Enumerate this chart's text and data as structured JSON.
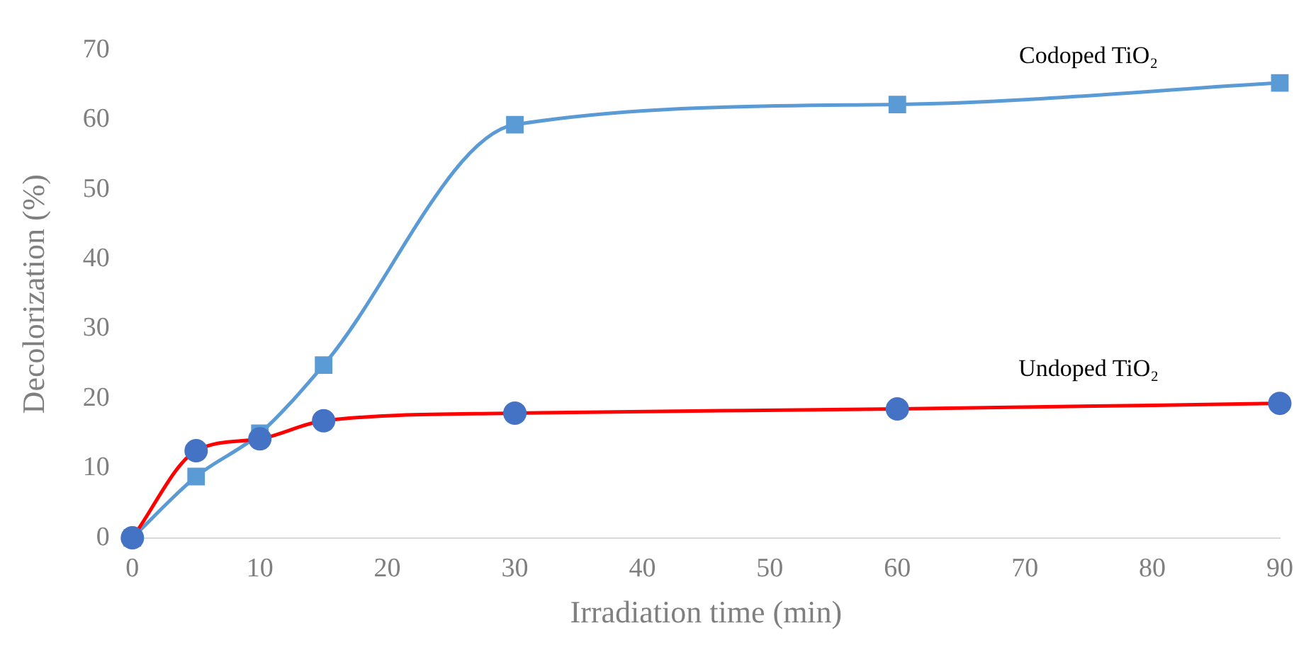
{
  "chart_data": {
    "type": "line",
    "xlabel": "Irradiation time (min)",
    "ylabel": "Decolorization (%)",
    "xlim": [
      0,
      90
    ],
    "xticks": [
      0,
      10,
      20,
      30,
      40,
      50,
      60,
      70,
      80,
      90
    ],
    "ylim": [
      0,
      70
    ],
    "yticks": [
      0,
      10,
      20,
      30,
      40,
      50,
      60,
      70
    ],
    "grid": false,
    "legend": false,
    "line_style": "solid",
    "series": [
      {
        "name": "Codoped TiO₂",
        "color": "#5b9bd5",
        "marker": "square",
        "x": [
          0,
          5,
          10,
          15,
          30,
          60,
          90
        ],
        "values": [
          0,
          8.8,
          15,
          24.8,
          59.3,
          62.2,
          65.3
        ]
      },
      {
        "name": "Undoped TiO₂",
        "color": "#ff0000",
        "colors": [
          "#4472c4",
          "#4472c4",
          "#4472c4",
          "#4472c4",
          "#4472c4",
          "#4472c4",
          "#4472c4"
        ],
        "marker": "circle",
        "x": [
          0,
          5,
          10,
          15,
          30,
          60,
          90
        ],
        "values": [
          0,
          12.5,
          14.2,
          16.8,
          17.9,
          18.5,
          19.3
        ]
      }
    ]
  }
}
